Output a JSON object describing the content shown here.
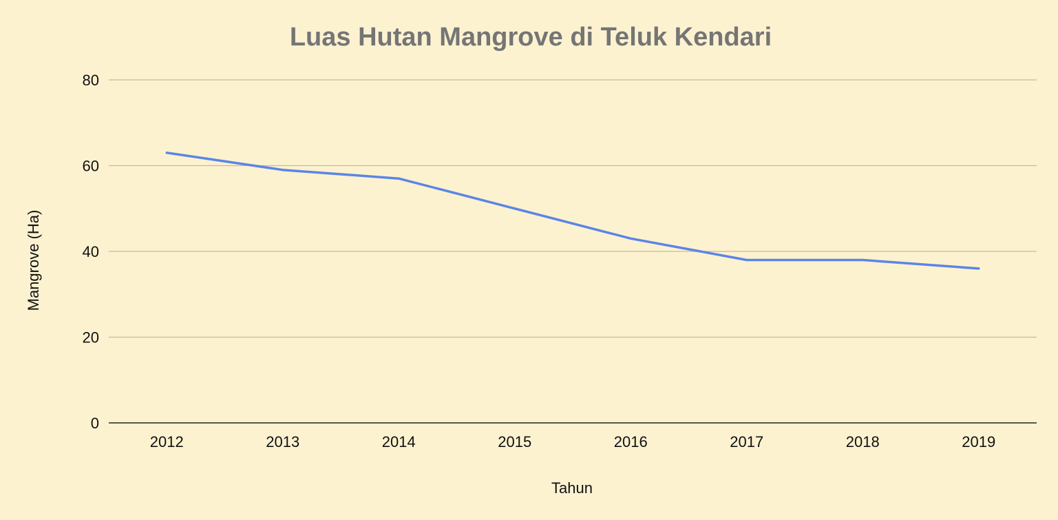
{
  "chart_data": {
    "type": "line",
    "title": "Luas Hutan Mangrove di Teluk Kendari",
    "xlabel": "Tahun",
    "ylabel": "Mangrove (Ha)",
    "categories": [
      "2012",
      "2013",
      "2014",
      "2015",
      "2016",
      "2017",
      "2018",
      "2019"
    ],
    "series": [
      {
        "values": [
          63,
          59,
          57,
          50,
          43,
          38,
          38,
          36
        ],
        "color": "#5b85e6"
      }
    ],
    "ylim": [
      0,
      80
    ],
    "yticks": [
      0,
      20,
      40,
      60,
      80
    ],
    "grid": true,
    "legend": "none",
    "background": "#fdf2d0",
    "gridColor": "#c4baa0",
    "axisColor": "#222222"
  }
}
